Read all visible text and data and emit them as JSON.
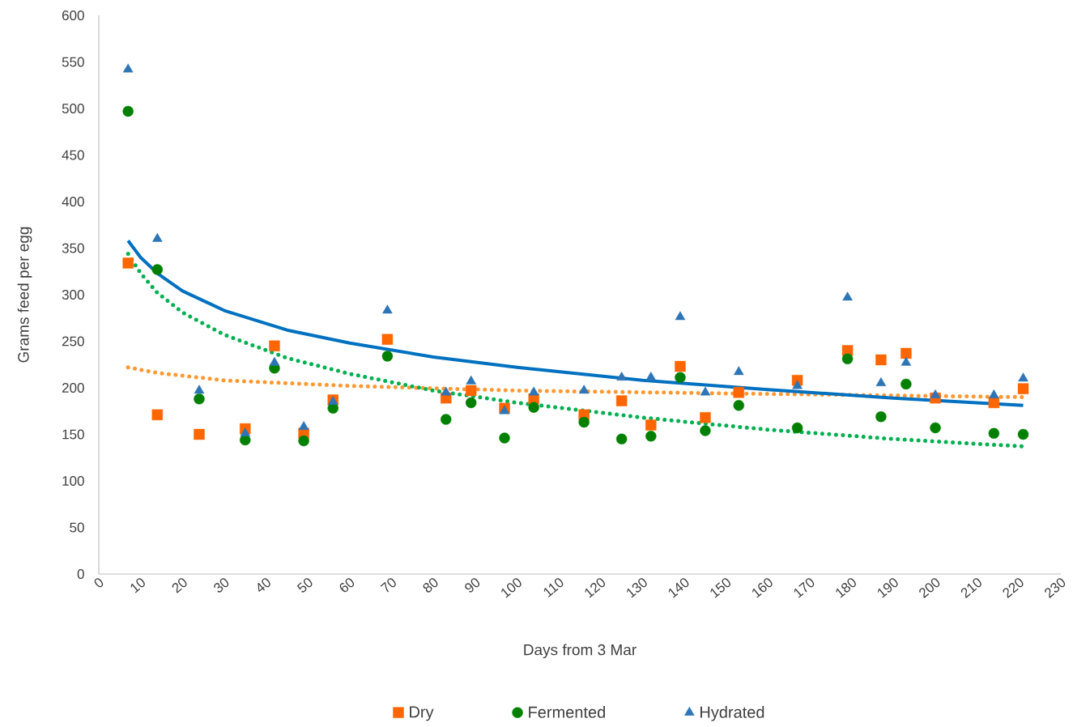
{
  "chart_data": {
    "type": "scatter",
    "xlabel": "Days from 3 Mar",
    "ylabel": "Grams feed per egg",
    "xlim": [
      0,
      230
    ],
    "xticks": [
      0,
      10,
      20,
      30,
      40,
      50,
      60,
      70,
      80,
      90,
      100,
      110,
      120,
      130,
      140,
      150,
      160,
      170,
      180,
      190,
      200,
      210,
      220,
      230
    ],
    "ylim": [
      0,
      600
    ],
    "yticks": [
      0,
      50,
      100,
      150,
      200,
      250,
      300,
      350,
      400,
      450,
      500,
      550,
      600
    ],
    "x": [
      7,
      14,
      24,
      35,
      42,
      49,
      56,
      69,
      83,
      89,
      97,
      104,
      116,
      125,
      132,
      139,
      145,
      153,
      167,
      179,
      187,
      193,
      200,
      214,
      221
    ],
    "legend": "bottom",
    "series": [
      {
        "name": "Dry",
        "color": "#ff6600",
        "marker": "square",
        "values": [
          334,
          171,
          150,
          156,
          245,
          151,
          187,
          252,
          189,
          197,
          178,
          188,
          171,
          186,
          160,
          223,
          168,
          195,
          208,
          240,
          230,
          237,
          189,
          184,
          199
        ]
      },
      {
        "name": "Fermented",
        "color": "#008000",
        "marker": "circle",
        "values": [
          497,
          327,
          188,
          144,
          221,
          143,
          178,
          234,
          166,
          184,
          146,
          179,
          163,
          145,
          148,
          211,
          154,
          181,
          157,
          231,
          169,
          204,
          157,
          151,
          150
        ]
      },
      {
        "name": "Hydrated",
        "color": "#2e75b6",
        "marker": "triangle",
        "values": [
          542,
          360,
          197,
          151,
          227,
          158,
          185,
          283,
          195,
          207,
          175,
          195,
          197,
          211,
          211,
          276,
          195,
          217,
          202,
          297,
          205,
          227,
          192,
          192,
          210
        ]
      },
      {
        "type": "line",
        "color": "#ff9933",
        "marker": "none",
        "line_style": "dotted",
        "x": [
          7,
          14,
          30,
          60,
          100,
          150,
          221
        ],
        "values": [
          222,
          216,
          208,
          202,
          197,
          194,
          190
        ]
      },
      {
        "type": "line",
        "color": "#00b050",
        "marker": "none",
        "line_style": "dotted",
        "x": [
          7,
          10,
          14,
          20,
          30,
          45,
          60,
          80,
          100,
          130,
          160,
          190,
          221
        ],
        "values": [
          344,
          323,
          302,
          281,
          257,
          232,
          215,
          197,
          184,
          168,
          155,
          145,
          137
        ]
      },
      {
        "type": "line",
        "color": "#0070c0",
        "marker": "none",
        "line_style": "solid",
        "x": [
          7,
          10,
          14,
          20,
          30,
          45,
          60,
          80,
          100,
          130,
          160,
          190,
          221
        ],
        "values": [
          358,
          340,
          323,
          304,
          283,
          262,
          248,
          233,
          222,
          208,
          198,
          189,
          181
        ]
      }
    ]
  }
}
